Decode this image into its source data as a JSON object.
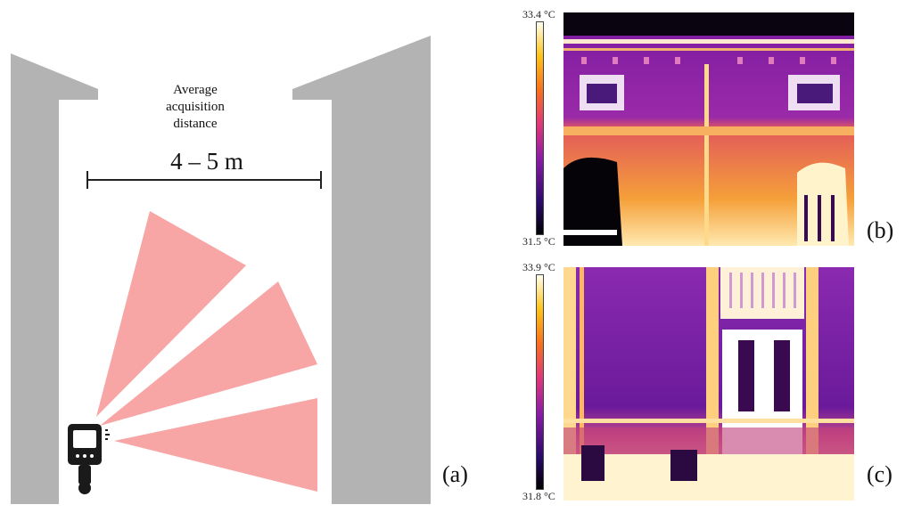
{
  "panel_a": {
    "label": "(a)",
    "caption_line1": "Average",
    "caption_line2": "acquisition",
    "caption_line3": "distance",
    "distance": "4 – 5 m",
    "colors": {
      "wall": "#b3b3b3",
      "cone": "#f7a5a5",
      "camera": "#1a1a1a"
    },
    "icons": [
      "thermal-camera-icon",
      "signal-waves-icon"
    ]
  },
  "panel_b": {
    "label": "(b)",
    "temp_max": "33.4 °C",
    "temp_min": "31.5 °C"
  },
  "panel_c": {
    "label": "(c)",
    "temp_max": "33.9 °C",
    "temp_min": "31.8 °C"
  }
}
